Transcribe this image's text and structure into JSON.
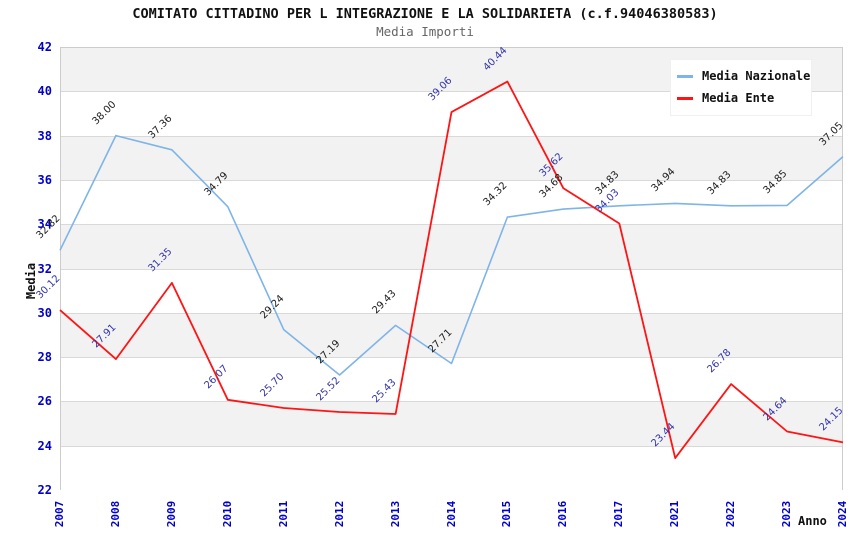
{
  "chart_data": {
    "type": "line",
    "title": "COMITATO CITTADINO PER L INTEGRAZIONE E LA SOLIDARIETA (c.f.94046380583)",
    "subtitle": "Media Importi",
    "xlabel": "Anno",
    "ylabel": "Media",
    "ylim": [
      22,
      42
    ],
    "ytick_step": 2,
    "grid": true,
    "legend_position": "top-right",
    "band_fill": "alternating horizontal stripes, gray on top band",
    "categories": [
      "2007",
      "2008",
      "2009",
      "2010",
      "2011",
      "2012",
      "2013",
      "2014",
      "2015",
      "2016",
      "2017",
      "2021",
      "2022",
      "2023",
      "2024"
    ],
    "series": [
      {
        "name": "Media Nazionale",
        "color": "#7eb4e8",
        "label_color": "#1c1c1c",
        "values": [
          32.82,
          38.0,
          37.36,
          34.79,
          29.24,
          27.19,
          29.43,
          27.71,
          34.32,
          34.68,
          34.83,
          34.94,
          34.83,
          34.85,
          37.05
        ]
      },
      {
        "name": "Media Ente",
        "color": "#ff1414",
        "label_color": "#3333aa",
        "values": [
          30.12,
          27.91,
          31.35,
          26.07,
          25.7,
          25.52,
          25.43,
          39.06,
          40.44,
          35.62,
          34.03,
          23.44,
          26.78,
          24.64,
          24.15
        ]
      }
    ],
    "colors": {
      "tick_label": "#0000cc",
      "band_gray": "#f2f2f2",
      "gridline": "#d9d9d9",
      "plot_border": "#cccccc",
      "title_text": "#111111",
      "subtitle_text": "#666666"
    }
  }
}
